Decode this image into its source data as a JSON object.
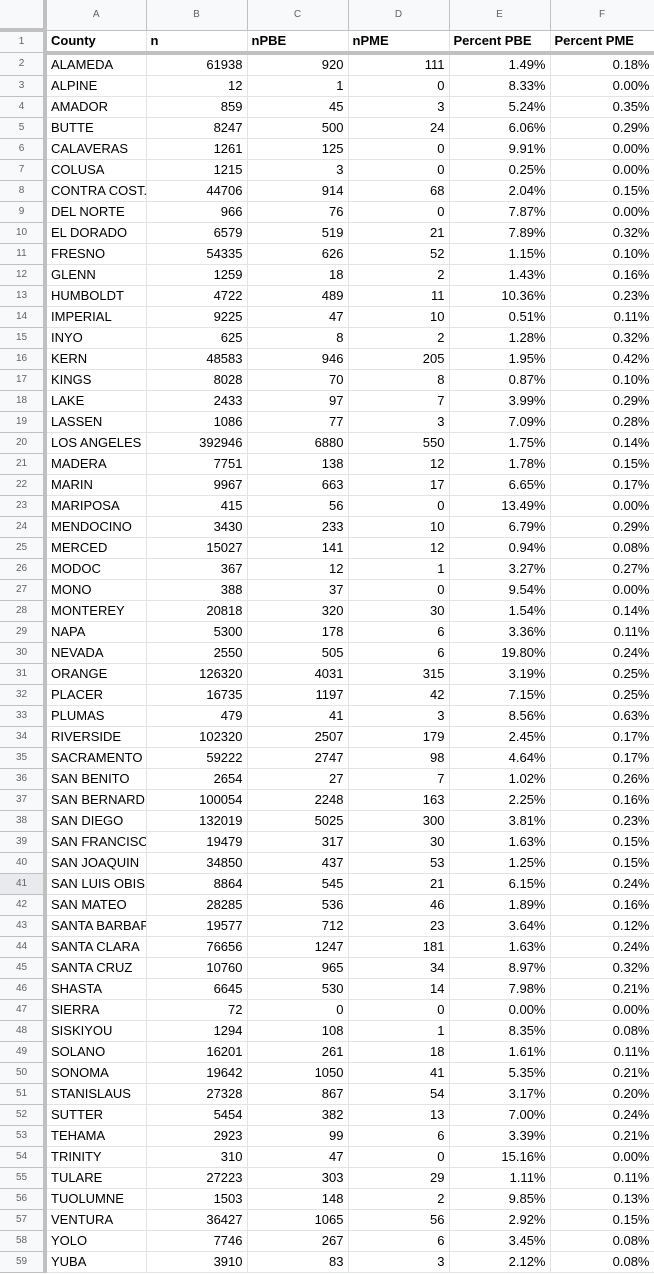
{
  "columns": [
    "A",
    "B",
    "C",
    "D",
    "E",
    "F"
  ],
  "header": {
    "row_number": "1",
    "county": "County",
    "n": "n",
    "npbe": "nPBE",
    "npme": "nPME",
    "percent_pbe": "Percent PBE",
    "percent_pme": "Percent PME"
  },
  "rows": [
    [
      "2",
      "ALAMEDA",
      "61938",
      "920",
      "111",
      "1.49%",
      "0.18%"
    ],
    [
      "3",
      "ALPINE",
      "12",
      "1",
      "0",
      "8.33%",
      "0.00%"
    ],
    [
      "4",
      "AMADOR",
      "859",
      "45",
      "3",
      "5.24%",
      "0.35%"
    ],
    [
      "5",
      "BUTTE",
      "8247",
      "500",
      "24",
      "6.06%",
      "0.29%"
    ],
    [
      "6",
      "CALAVERAS",
      "1261",
      "125",
      "0",
      "9.91%",
      "0.00%"
    ],
    [
      "7",
      "COLUSA",
      "1215",
      "3",
      "0",
      "0.25%",
      "0.00%"
    ],
    [
      "8",
      "CONTRA COST.",
      "44706",
      "914",
      "68",
      "2.04%",
      "0.15%"
    ],
    [
      "9",
      "DEL NORTE",
      "966",
      "76",
      "0",
      "7.87%",
      "0.00%"
    ],
    [
      "10",
      "EL DORADO",
      "6579",
      "519",
      "21",
      "7.89%",
      "0.32%"
    ],
    [
      "11",
      "FRESNO",
      "54335",
      "626",
      "52",
      "1.15%",
      "0.10%"
    ],
    [
      "12",
      "GLENN",
      "1259",
      "18",
      "2",
      "1.43%",
      "0.16%"
    ],
    [
      "13",
      "HUMBOLDT",
      "4722",
      "489",
      "11",
      "10.36%",
      "0.23%"
    ],
    [
      "14",
      "IMPERIAL",
      "9225",
      "47",
      "10",
      "0.51%",
      "0.11%"
    ],
    [
      "15",
      "INYO",
      "625",
      "8",
      "2",
      "1.28%",
      "0.32%"
    ],
    [
      "16",
      "KERN",
      "48583",
      "946",
      "205",
      "1.95%",
      "0.42%"
    ],
    [
      "17",
      "KINGS",
      "8028",
      "70",
      "8",
      "0.87%",
      "0.10%"
    ],
    [
      "18",
      "LAKE",
      "2433",
      "97",
      "7",
      "3.99%",
      "0.29%"
    ],
    [
      "19",
      "LASSEN",
      "1086",
      "77",
      "3",
      "7.09%",
      "0.28%"
    ],
    [
      "20",
      "LOS ANGELES",
      "392946",
      "6880",
      "550",
      "1.75%",
      "0.14%"
    ],
    [
      "21",
      "MADERA",
      "7751",
      "138",
      "12",
      "1.78%",
      "0.15%"
    ],
    [
      "22",
      "MARIN",
      "9967",
      "663",
      "17",
      "6.65%",
      "0.17%"
    ],
    [
      "23",
      "MARIPOSA",
      "415",
      "56",
      "0",
      "13.49%",
      "0.00%"
    ],
    [
      "24",
      "MENDOCINO",
      "3430",
      "233",
      "10",
      "6.79%",
      "0.29%"
    ],
    [
      "25",
      "MERCED",
      "15027",
      "141",
      "12",
      "0.94%",
      "0.08%"
    ],
    [
      "26",
      "MODOC",
      "367",
      "12",
      "1",
      "3.27%",
      "0.27%"
    ],
    [
      "27",
      "MONO",
      "388",
      "37",
      "0",
      "9.54%",
      "0.00%"
    ],
    [
      "28",
      "MONTEREY",
      "20818",
      "320",
      "30",
      "1.54%",
      "0.14%"
    ],
    [
      "29",
      "NAPA",
      "5300",
      "178",
      "6",
      "3.36%",
      "0.11%"
    ],
    [
      "30",
      "NEVADA",
      "2550",
      "505",
      "6",
      "19.80%",
      "0.24%"
    ],
    [
      "31",
      "ORANGE",
      "126320",
      "4031",
      "315",
      "3.19%",
      "0.25%"
    ],
    [
      "32",
      "PLACER",
      "16735",
      "1197",
      "42",
      "7.15%",
      "0.25%"
    ],
    [
      "33",
      "PLUMAS",
      "479",
      "41",
      "3",
      "8.56%",
      "0.63%"
    ],
    [
      "34",
      "RIVERSIDE",
      "102320",
      "2507",
      "179",
      "2.45%",
      "0.17%"
    ],
    [
      "35",
      "SACRAMENTO",
      "59222",
      "2747",
      "98",
      "4.64%",
      "0.17%"
    ],
    [
      "36",
      "SAN BENITO",
      "2654",
      "27",
      "7",
      "1.02%",
      "0.26%"
    ],
    [
      "37",
      "SAN BERNARD",
      "100054",
      "2248",
      "163",
      "2.25%",
      "0.16%"
    ],
    [
      "38",
      "SAN DIEGO",
      "132019",
      "5025",
      "300",
      "3.81%",
      "0.23%"
    ],
    [
      "39",
      "SAN FRANCISC",
      "19479",
      "317",
      "30",
      "1.63%",
      "0.15%"
    ],
    [
      "40",
      "SAN JOAQUIN",
      "34850",
      "437",
      "53",
      "1.25%",
      "0.15%"
    ],
    [
      "41",
      "SAN LUIS OBIS",
      "8864",
      "545",
      "21",
      "6.15%",
      "0.24%"
    ],
    [
      "42",
      "SAN MATEO",
      "28285",
      "536",
      "46",
      "1.89%",
      "0.16%"
    ],
    [
      "43",
      "SANTA BARBAF",
      "19577",
      "712",
      "23",
      "3.64%",
      "0.12%"
    ],
    [
      "44",
      "SANTA CLARA",
      "76656",
      "1247",
      "181",
      "1.63%",
      "0.24%"
    ],
    [
      "45",
      "SANTA CRUZ",
      "10760",
      "965",
      "34",
      "8.97%",
      "0.32%"
    ],
    [
      "46",
      "SHASTA",
      "6645",
      "530",
      "14",
      "7.98%",
      "0.21%"
    ],
    [
      "47",
      "SIERRA",
      "72",
      "0",
      "0",
      "0.00%",
      "0.00%"
    ],
    [
      "48",
      "SISKIYOU",
      "1294",
      "108",
      "1",
      "8.35%",
      "0.08%"
    ],
    [
      "49",
      "SOLANO",
      "16201",
      "261",
      "18",
      "1.61%",
      "0.11%"
    ],
    [
      "50",
      "SONOMA",
      "19642",
      "1050",
      "41",
      "5.35%",
      "0.21%"
    ],
    [
      "51",
      "STANISLAUS",
      "27328",
      "867",
      "54",
      "3.17%",
      "0.20%"
    ],
    [
      "52",
      "SUTTER",
      "5454",
      "382",
      "13",
      "7.00%",
      "0.24%"
    ],
    [
      "53",
      "TEHAMA",
      "2923",
      "99",
      "6",
      "3.39%",
      "0.21%"
    ],
    [
      "54",
      "TRINITY",
      "310",
      "47",
      "0",
      "15.16%",
      "0.00%"
    ],
    [
      "55",
      "TULARE",
      "27223",
      "303",
      "29",
      "1.11%",
      "0.11%"
    ],
    [
      "56",
      "TUOLUMNE",
      "1503",
      "148",
      "2",
      "9.85%",
      "0.13%"
    ],
    [
      "57",
      "VENTURA",
      "36427",
      "1065",
      "56",
      "2.92%",
      "0.15%"
    ],
    [
      "58",
      "YOLO",
      "7746",
      "267",
      "6",
      "3.45%",
      "0.08%"
    ],
    [
      "59",
      "YUBA",
      "3910",
      "83",
      "3",
      "2.12%",
      "0.08%"
    ]
  ]
}
